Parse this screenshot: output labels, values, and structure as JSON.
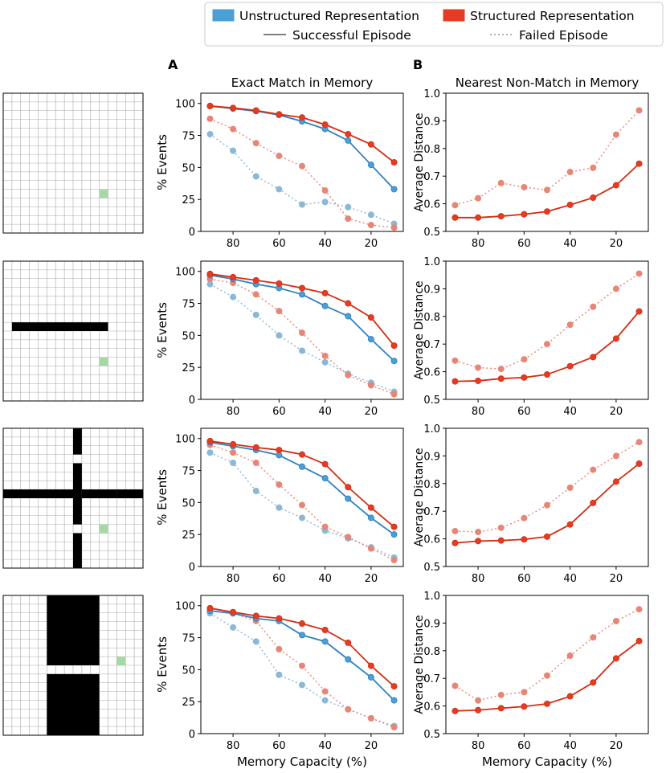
{
  "figure": {
    "legend": {
      "entries": [
        {
          "label": "Unstructured Representation",
          "kind": "patch",
          "color": "#4a9fd4"
        },
        {
          "label": "Structured Representation",
          "kind": "patch",
          "color": "#e63b22"
        },
        {
          "label": "Successful Episode",
          "kind": "solid-line",
          "color": "#555555"
        },
        {
          "label": "Failed Episode",
          "kind": "dotted-line",
          "color": "#999999"
        }
      ]
    },
    "panel_labels": [
      "A",
      "B"
    ],
    "colors": {
      "unstructured": "#2f7fbf",
      "unstructured_marker": "#4a9fd4",
      "structured": "#d42d12",
      "structured_marker": "#e63b22",
      "unstructured_failed": "#8ab8d6",
      "structured_failed": "#e88676",
      "obstacle": "#000000",
      "goal": "#a6d8a6",
      "grid": "#aaaaaa"
    }
  },
  "environments": [
    {
      "name": "open-room",
      "cells": 16,
      "goal": {
        "col": 11,
        "row": 11
      },
      "walls": []
    },
    {
      "name": "horizontal-wall",
      "cells": 16,
      "goal": {
        "col": 11,
        "row": 11
      },
      "walls": [
        {
          "row": 7,
          "col_from": 1,
          "col_to": 11
        }
      ]
    },
    {
      "name": "cross-walls",
      "cells": 16,
      "goal": {
        "col": 11,
        "row": 11
      },
      "walls": [
        {
          "row": 7,
          "col_from": 0,
          "col_to": 7
        },
        {
          "row": 7,
          "col_from": 9,
          "col_to": 12
        },
        {
          "row": 7,
          "col_from": 13,
          "col_to": 15
        },
        {
          "col": 8,
          "row_from": 0,
          "row_to": 2
        },
        {
          "col": 8,
          "row_from": 4,
          "row_to": 10
        },
        {
          "col": 8,
          "row_from": 12,
          "row_to": 15
        }
      ]
    },
    {
      "name": "wide-vertical-wall",
      "cells": 16,
      "goal": {
        "col": 13,
        "row": 7
      },
      "walls": [
        {
          "col": 5,
          "col_to": 10,
          "row_from": 0,
          "row_to": 7
        },
        {
          "col": 5,
          "col_to": 10,
          "row_from": 9,
          "row_to": 15
        }
      ]
    }
  ],
  "chart_data": [
    {
      "panel": "A",
      "row": 1,
      "type": "line",
      "title": "Exact Match in Memory",
      "xlabel": "",
      "ylabel": "% Events",
      "xlim": [
        94,
        6
      ],
      "ylim": [
        0,
        108
      ],
      "xticks": [
        80,
        60,
        40,
        20
      ],
      "yticks": [
        0,
        25,
        50,
        75,
        100
      ],
      "x": [
        90,
        80,
        70,
        60,
        50,
        40,
        30,
        20,
        10
      ],
      "series": [
        {
          "name": "Unstructured Representation - Failed Episode",
          "style": "dotted",
          "color_key": "unstructured_failed",
          "values": [
            76,
            63,
            43,
            33,
            21,
            23,
            19,
            13,
            6
          ]
        },
        {
          "name": "Structured Representation - Failed Episode",
          "style": "dotted",
          "color_key": "structured_failed",
          "values": [
            88,
            80,
            69,
            59,
            51,
            32,
            10,
            5,
            3
          ]
        },
        {
          "name": "Unstructured Representation - Successful Episode",
          "style": "solid",
          "color_key": "unstructured",
          "values": [
            98,
            96,
            94,
            91,
            86,
            80,
            71,
            52,
            33
          ]
        },
        {
          "name": "Structured Representation - Successful Episode",
          "style": "solid",
          "color_key": "structured",
          "values": [
            98,
            96.5,
            94.5,
            91.5,
            89,
            83.5,
            76,
            68,
            54
          ]
        }
      ]
    },
    {
      "panel": "B",
      "row": 1,
      "type": "line",
      "title": "Nearest Non-Match in Memory",
      "xlabel": "",
      "ylabel": "Average Distance",
      "xlim": [
        94,
        6
      ],
      "ylim": [
        0.5,
        1.0
      ],
      "xticks": [
        80,
        60,
        40,
        20
      ],
      "yticks": [
        0.5,
        0.6,
        0.7,
        0.8,
        0.9,
        1.0
      ],
      "x": [
        90,
        80,
        70,
        60,
        50,
        40,
        30,
        20,
        10
      ],
      "series": [
        {
          "name": "Structured Representation - Failed Episode",
          "style": "dotted",
          "color_key": "structured_failed",
          "values": [
            0.595,
            0.62,
            0.675,
            0.66,
            0.65,
            0.715,
            0.73,
            0.85,
            0.938
          ]
        },
        {
          "name": "Structured Representation - Successful Episode",
          "style": "solid",
          "color_key": "structured",
          "values": [
            0.55,
            0.55,
            0.555,
            0.562,
            0.572,
            0.596,
            0.622,
            0.667,
            0.745
          ]
        }
      ]
    },
    {
      "panel": "A",
      "row": 2,
      "type": "line",
      "title": "",
      "xlabel": "",
      "ylabel": "% Events",
      "xlim": [
        94,
        6
      ],
      "ylim": [
        0,
        108
      ],
      "xticks": [
        80,
        60,
        40,
        20
      ],
      "yticks": [
        0,
        25,
        50,
        75,
        100
      ],
      "x": [
        90,
        80,
        70,
        60,
        50,
        40,
        30,
        20,
        10
      ],
      "series": [
        {
          "name": "Unstructured Representation - Failed Episode",
          "style": "dotted",
          "color_key": "unstructured_failed",
          "values": [
            90,
            80,
            66,
            50,
            38,
            29,
            20,
            13,
            6
          ]
        },
        {
          "name": "Structured Representation - Failed Episode",
          "style": "dotted",
          "color_key": "structured_failed",
          "values": [
            94,
            91,
            82,
            69,
            52,
            34,
            19,
            11,
            4
          ]
        },
        {
          "name": "Unstructured Representation - Successful Episode",
          "style": "solid",
          "color_key": "unstructured",
          "values": [
            97,
            94,
            90,
            87,
            82,
            73,
            65,
            47,
            30
          ]
        },
        {
          "name": "Structured Representation - Successful Episode",
          "style": "solid",
          "color_key": "structured",
          "values": [
            98,
            95.5,
            93,
            90.5,
            87,
            83,
            75,
            64,
            42
          ]
        }
      ]
    },
    {
      "panel": "B",
      "row": 2,
      "type": "line",
      "title": "",
      "xlabel": "",
      "ylabel": "Average Distance",
      "xlim": [
        94,
        6
      ],
      "ylim": [
        0.5,
        1.0
      ],
      "xticks": [
        80,
        60,
        40,
        20
      ],
      "yticks": [
        0.5,
        0.6,
        0.7,
        0.8,
        0.9,
        1.0
      ],
      "x": [
        90,
        80,
        70,
        60,
        50,
        40,
        30,
        20,
        10
      ],
      "series": [
        {
          "name": "Structured Representation - Failed Episode",
          "style": "dotted",
          "color_key": "structured_failed",
          "values": [
            0.64,
            0.615,
            0.61,
            0.645,
            0.7,
            0.77,
            0.835,
            0.9,
            0.955
          ]
        },
        {
          "name": "Structured Representation - Successful Episode",
          "style": "solid",
          "color_key": "structured",
          "values": [
            0.565,
            0.567,
            0.575,
            0.579,
            0.59,
            0.62,
            0.653,
            0.72,
            0.818
          ]
        }
      ]
    },
    {
      "panel": "A",
      "row": 3,
      "type": "line",
      "title": "",
      "xlabel": "",
      "ylabel": "% Events",
      "xlim": [
        94,
        6
      ],
      "ylim": [
        0,
        108
      ],
      "xticks": [
        80,
        60,
        40,
        20
      ],
      "yticks": [
        0,
        25,
        50,
        75,
        100
      ],
      "x": [
        90,
        80,
        70,
        60,
        50,
        40,
        30,
        20,
        10
      ],
      "series": [
        {
          "name": "Unstructured Representation - Failed Episode",
          "style": "dotted",
          "color_key": "unstructured_failed",
          "values": [
            89,
            81,
            59,
            46,
            38,
            28,
            22,
            15,
            7
          ]
        },
        {
          "name": "Structured Representation - Failed Episode",
          "style": "dotted",
          "color_key": "structured_failed",
          "values": [
            95,
            89,
            81,
            64,
            48,
            31,
            23,
            14,
            5
          ]
        },
        {
          "name": "Unstructured Representation - Successful Episode",
          "style": "solid",
          "color_key": "unstructured",
          "values": [
            97,
            94,
            91,
            87,
            78,
            69,
            53,
            38,
            25
          ]
        },
        {
          "name": "Structured Representation - Successful Episode",
          "style": "solid",
          "color_key": "structured",
          "values": [
            98,
            95.5,
            93,
            91,
            87.5,
            80,
            62,
            46,
            31
          ]
        }
      ]
    },
    {
      "panel": "B",
      "row": 3,
      "type": "line",
      "title": "",
      "xlabel": "",
      "ylabel": "Average Distance",
      "xlim": [
        94,
        6
      ],
      "ylim": [
        0.5,
        1.0
      ],
      "xticks": [
        80,
        60,
        40,
        20
      ],
      "yticks": [
        0.5,
        0.6,
        0.7,
        0.8,
        0.9,
        1.0
      ],
      "x": [
        90,
        80,
        70,
        60,
        50,
        40,
        30,
        20,
        10
      ],
      "series": [
        {
          "name": "Structured Representation - Failed Episode",
          "style": "dotted",
          "color_key": "structured_failed",
          "values": [
            0.628,
            0.625,
            0.64,
            0.675,
            0.722,
            0.785,
            0.85,
            0.9,
            0.95
          ]
        },
        {
          "name": "Structured Representation - Successful Episode",
          "style": "solid",
          "color_key": "structured",
          "values": [
            0.585,
            0.592,
            0.594,
            0.598,
            0.608,
            0.652,
            0.73,
            0.807,
            0.872
          ]
        }
      ]
    },
    {
      "panel": "A",
      "row": 4,
      "type": "line",
      "title": "",
      "xlabel": "Memory Capacity (%)",
      "ylabel": "% Events",
      "xlim": [
        94,
        6
      ],
      "ylim": [
        0,
        108
      ],
      "xticks": [
        80,
        60,
        40,
        20
      ],
      "yticks": [
        0,
        25,
        50,
        75,
        100
      ],
      "x": [
        90,
        80,
        70,
        60,
        50,
        40,
        30,
        20,
        10
      ],
      "series": [
        {
          "name": "Unstructured Representation - Failed Episode",
          "style": "dotted",
          "color_key": "unstructured_failed",
          "values": [
            94,
            83,
            72,
            46,
            38,
            26,
            19,
            12,
            6
          ]
        },
        {
          "name": "Structured Representation - Failed Episode",
          "style": "dotted",
          "color_key": "structured_failed",
          "values": [
            96,
            94,
            88,
            66,
            53,
            33,
            19,
            12,
            5
          ]
        },
        {
          "name": "Unstructured Representation - Successful Episode",
          "style": "solid",
          "color_key": "unstructured",
          "values": [
            96,
            94,
            90,
            88,
            77,
            72,
            58,
            44,
            26
          ]
        },
        {
          "name": "Structured Representation - Successful Episode",
          "style": "solid",
          "color_key": "structured",
          "values": [
            98,
            95,
            92,
            90,
            86,
            81,
            71,
            53,
            37
          ]
        }
      ]
    },
    {
      "panel": "B",
      "row": 4,
      "type": "line",
      "title": "",
      "xlabel": "Memory Capacity (%)",
      "ylabel": "Average Distance",
      "xlim": [
        94,
        6
      ],
      "ylim": [
        0.5,
        1.0
      ],
      "xticks": [
        80,
        60,
        40,
        20
      ],
      "yticks": [
        0.5,
        0.6,
        0.7,
        0.8,
        0.9,
        1.0
      ],
      "x": [
        90,
        80,
        70,
        60,
        50,
        40,
        30,
        20,
        10
      ],
      "series": [
        {
          "name": "Structured Representation - Failed Episode",
          "style": "dotted",
          "color_key": "structured_failed",
          "values": [
            0.673,
            0.62,
            0.64,
            0.65,
            0.71,
            0.782,
            0.848,
            0.907,
            0.95
          ]
        },
        {
          "name": "Structured Representation - Successful Episode",
          "style": "solid",
          "color_key": "structured",
          "values": [
            0.582,
            0.585,
            0.592,
            0.598,
            0.608,
            0.635,
            0.685,
            0.772,
            0.835
          ]
        }
      ]
    }
  ]
}
